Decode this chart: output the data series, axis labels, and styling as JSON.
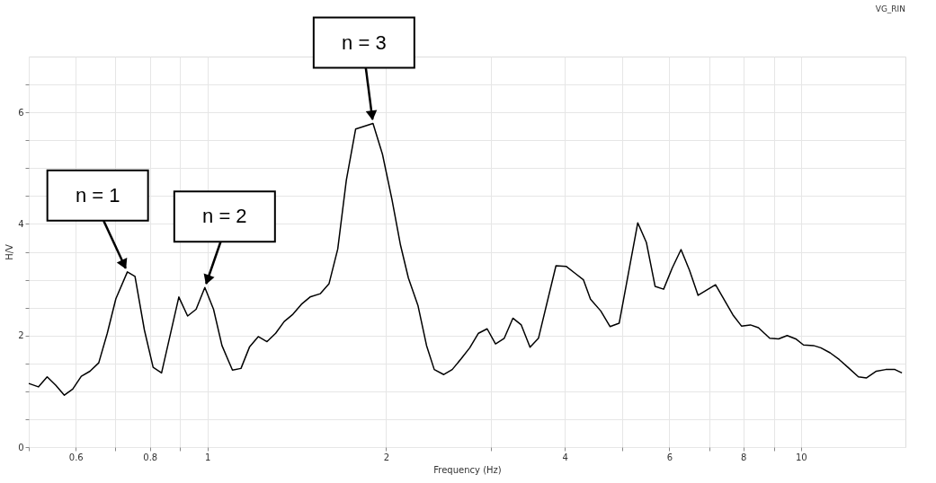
{
  "chart_data": {
    "type": "line",
    "title": "VG_RIN",
    "xlabel": "Frequency (Hz)",
    "ylabel": "H/V",
    "log": "x",
    "grid": true,
    "marker": "none",
    "line_style": "solid",
    "xlim": [
      0.5,
      15
    ],
    "ylim": [
      0,
      7
    ],
    "xticks": [
      {
        "value": 0.5,
        "label": null
      },
      0.6,
      {
        "value": 0.7,
        "label": null
      },
      0.8,
      {
        "value": 0.9,
        "label": null
      },
      1,
      2,
      {
        "value": 3,
        "label": null
      },
      4,
      {
        "value": 5,
        "label": null
      },
      6,
      {
        "value": 7,
        "label": null
      },
      8,
      {
        "value": 9,
        "label": null
      },
      10
    ],
    "yticks": [
      0,
      {
        "value": 0.5,
        "label": null
      },
      {
        "value": 1,
        "label": null
      },
      {
        "value": 1.5,
        "label": null
      },
      2,
      {
        "value": 2.5,
        "label": null
      },
      {
        "value": 3,
        "label": null
      },
      {
        "value": 3.5,
        "label": null
      },
      4,
      {
        "value": 4.5,
        "label": null
      },
      {
        "value": 5,
        "label": null
      },
      {
        "value": 5.5,
        "label": null
      },
      6,
      {
        "value": 6.5,
        "label": null
      }
    ],
    "x": [
      0.5,
      0.519,
      0.537,
      0.555,
      0.574,
      0.593,
      0.613,
      0.634,
      0.656,
      0.678,
      0.701,
      0.733,
      0.755,
      0.783,
      0.81,
      0.837,
      0.895,
      0.926,
      0.957,
      0.99,
      1.024,
      1.058,
      1.102,
      1.139,
      1.178,
      1.218,
      1.26,
      1.303,
      1.347,
      1.393,
      1.44,
      1.489,
      1.55,
      1.603,
      1.658,
      1.714,
      1.777,
      1.901,
      1.972,
      2.046,
      2.115,
      2.181,
      2.263,
      2.34,
      2.411,
      2.502,
      2.585,
      2.675,
      2.767,
      2.862,
      2.96,
      3.058,
      3.163,
      3.271,
      3.379,
      3.496,
      3.612,
      3.866,
      4.021,
      4.17,
      4.3,
      4.42,
      4.6,
      4.77,
      4.94,
      5.31,
      5.49,
      5.68,
      5.87,
      6.07,
      6.28,
      6.49,
      6.71,
      7.18,
      7.68,
      7.94,
      8.22,
      8.48,
      8.86,
      9.17,
      9.48,
      9.8,
      10.1,
      10.5,
      10.8,
      11.2,
      11.6,
      12.0,
      12.5,
      12.9,
      13.4,
      13.9,
      14.4,
      14.8
    ],
    "series": [
      {
        "color": "#000000",
        "values": [
          1.14,
          1.08,
          1.26,
          1.11,
          0.93,
          1.04,
          1.27,
          1.36,
          1.51,
          2.04,
          2.66,
          3.14,
          3.06,
          2.1,
          1.43,
          1.33,
          2.69,
          2.35,
          2.47,
          2.86,
          2.47,
          1.82,
          1.38,
          1.41,
          1.8,
          1.98,
          1.89,
          2.04,
          2.25,
          2.38,
          2.56,
          2.69,
          2.75,
          2.93,
          3.55,
          4.78,
          5.7,
          5.8,
          5.25,
          4.44,
          3.62,
          3.03,
          2.54,
          1.82,
          1.39,
          1.3,
          1.39,
          1.58,
          1.78,
          2.04,
          2.12,
          1.85,
          1.95,
          2.31,
          2.19,
          1.79,
          1.95,
          3.25,
          3.24,
          3.11,
          3.0,
          2.65,
          2.44,
          2.16,
          2.22,
          4.02,
          3.67,
          2.88,
          2.83,
          3.21,
          3.54,
          3.17,
          2.72,
          2.91,
          2.37,
          2.17,
          2.19,
          2.14,
          1.95,
          1.94,
          2.0,
          1.94,
          1.83,
          1.82,
          1.78,
          1.69,
          1.57,
          1.43,
          1.26,
          1.24,
          1.36,
          1.39,
          1.39,
          1.33
        ]
      }
    ],
    "annotations": [
      {
        "text": "n = 1",
        "x": 0.733,
        "y": 3.14
      },
      {
        "text": "n = 2",
        "x": 0.99,
        "y": 2.86
      },
      {
        "text": "n = 3",
        "x": 1.901,
        "y": 5.8
      }
    ]
  }
}
